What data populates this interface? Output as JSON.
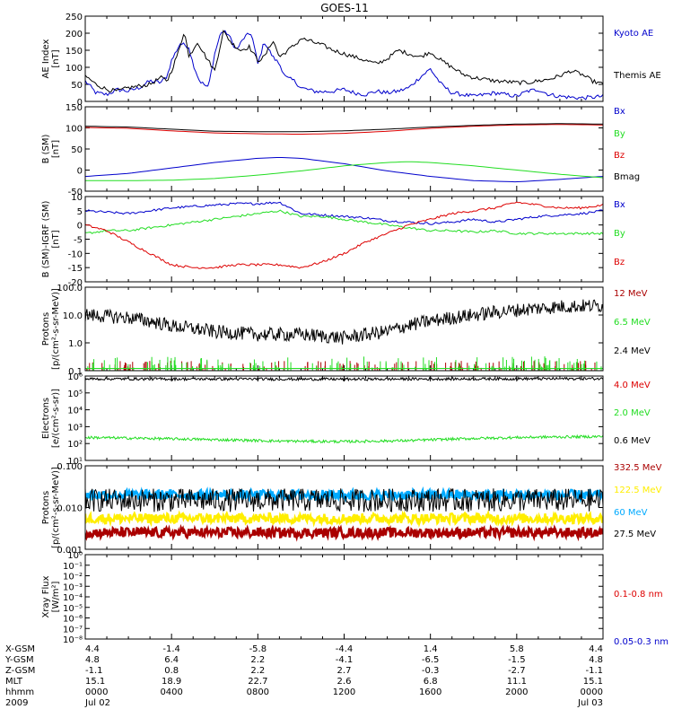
{
  "title": "GOES-11",
  "colors": {
    "black": "#000000",
    "blue": "#0000cc",
    "green": "#22dd22",
    "red": "#dd0000",
    "darkred": "#aa0000",
    "yellow": "#ffee00",
    "cyan": "#00aaff"
  },
  "chart_data": [
    {
      "id": "ae",
      "type": "line",
      "ylabel": [
        "AE Index",
        "[nT]"
      ],
      "ylim": [
        0,
        250
      ],
      "yticks": [
        "0",
        "50",
        "100",
        "150",
        "200",
        "250"
      ],
      "series": [
        {
          "name": "Kyoto AE",
          "color": "#0000cc",
          "x": [
            0,
            0.5,
            1,
            1.5,
            2,
            2.5,
            3,
            3.5,
            3.8,
            4,
            4.4,
            4.8,
            5,
            5.3,
            5.7,
            6,
            6.3,
            6.6,
            7,
            7.4,
            7.7,
            8,
            8.3,
            8.7,
            9,
            9.3,
            9.7,
            10,
            10.3,
            10.6,
            11,
            11.5,
            12,
            12.5,
            13,
            13.5,
            14,
            14.5,
            15,
            15.5,
            16,
            16.5,
            17,
            17.5,
            18,
            18.5,
            19,
            19.5,
            20,
            20.5,
            21,
            21.5,
            22,
            22.5,
            23,
            23.5,
            24
          ],
          "values": [
            60,
            25,
            20,
            35,
            30,
            40,
            60,
            55,
            75,
            120,
            170,
            160,
            110,
            60,
            40,
            140,
            205,
            200,
            150,
            190,
            200,
            110,
            175,
            130,
            110,
            70,
            60,
            40,
            35,
            30,
            28,
            30,
            35,
            25,
            20,
            30,
            25,
            30,
            40,
            70,
            95,
            50,
            25,
            20,
            15,
            20,
            25,
            20,
            15,
            30,
            35,
            20,
            15,
            12,
            10,
            12,
            15
          ]
        },
        {
          "name": "Themis AE",
          "color": "#000000",
          "x": [
            0,
            0.5,
            1,
            1.5,
            2,
            2.5,
            3,
            3.5,
            3.8,
            4,
            4.4,
            4.6,
            4.8,
            5.2,
            5.6,
            6,
            6.4,
            6.8,
            7.2,
            7.6,
            8,
            8.3,
            8.7,
            9,
            9.4,
            9.8,
            10,
            10.5,
            11,
            11.5,
            12,
            12.5,
            13,
            13.5,
            14,
            14.5,
            15,
            15.5,
            16,
            16.5,
            17,
            17.5,
            18,
            18.5,
            19,
            19.5,
            20,
            20.5,
            21,
            21.5,
            22,
            22.5,
            23,
            23.5,
            24
          ],
          "values": [
            75,
            50,
            35,
            30,
            40,
            45,
            50,
            70,
            60,
            90,
            160,
            210,
            130,
            175,
            130,
            90,
            205,
            170,
            150,
            160,
            120,
            130,
            180,
            130,
            150,
            170,
            185,
            175,
            165,
            150,
            140,
            130,
            120,
            110,
            125,
            150,
            140,
            130,
            145,
            120,
            100,
            80,
            70,
            65,
            60,
            58,
            55,
            55,
            60,
            65,
            75,
            90,
            80,
            60,
            50
          ]
        }
      ]
    },
    {
      "id": "b",
      "type": "line",
      "ylabel": [
        "B (SM)",
        "[nT]"
      ],
      "ylim": [
        -50,
        150
      ],
      "yticks": [
        "-50",
        "0",
        "50",
        "100",
        "150"
      ],
      "series": [
        {
          "name": "Bx",
          "color": "#0000cc",
          "x": [
            0,
            2,
            4,
            6,
            8,
            9,
            10,
            12,
            14,
            16,
            18,
            20,
            22,
            24
          ],
          "values": [
            -15,
            -8,
            5,
            18,
            28,
            30,
            28,
            15,
            -2,
            -15,
            -25,
            -28,
            -22,
            -15
          ]
        },
        {
          "name": "By",
          "color": "#22dd22",
          "x": [
            0,
            2,
            4,
            6,
            8,
            10,
            12,
            14,
            15,
            16,
            18,
            20,
            22,
            24
          ],
          "values": [
            -25,
            -25,
            -24,
            -20,
            -12,
            -2,
            10,
            18,
            20,
            18,
            10,
            0,
            -10,
            -18
          ]
        },
        {
          "name": "Bz",
          "color": "#dd0000",
          "x": [
            0,
            2,
            4,
            6,
            8,
            10,
            12,
            14,
            16,
            18,
            20,
            22,
            24
          ],
          "values": [
            101,
            99,
            93,
            88,
            86,
            85,
            87,
            92,
            99,
            104,
            107,
            108,
            107
          ]
        },
        {
          "name": "Bmag",
          "color": "#000000",
          "x": [
            0,
            2,
            4,
            6,
            8,
            10,
            12,
            14,
            16,
            18,
            20,
            22,
            24
          ],
          "values": [
            104,
            102,
            97,
            92,
            91,
            91,
            93,
            97,
            102,
            106,
            109,
            110,
            109
          ]
        }
      ]
    },
    {
      "id": "b-igrf",
      "type": "line",
      "ylabel": [
        "B (SM)-IGRF (SM)",
        "[nT]"
      ],
      "ylim": [
        -20,
        10
      ],
      "yticks": [
        "-20",
        "-15",
        "-10",
        "-5",
        "0",
        "5",
        "10"
      ],
      "series": [
        {
          "name": "Bx",
          "color": "#0000cc",
          "x": [
            0,
            1,
            2,
            3,
            4,
            5,
            6,
            7,
            8,
            9,
            9.5,
            10,
            11,
            12,
            13,
            14,
            15,
            16,
            17,
            18,
            19,
            20,
            21,
            22,
            23,
            24
          ],
          "values": [
            5,
            4.5,
            4,
            5,
            6,
            6.5,
            7,
            7.5,
            7.5,
            8,
            6,
            4,
            3.5,
            3,
            2.5,
            1.5,
            1,
            0.5,
            1,
            2,
            1,
            2,
            3,
            3.5,
            4,
            5
          ]
        },
        {
          "name": "By",
          "color": "#22dd22",
          "x": [
            0,
            1,
            2,
            3,
            4,
            5,
            6,
            7,
            8,
            9,
            10,
            11,
            12,
            13,
            14,
            15,
            16,
            17,
            18,
            19,
            20,
            21,
            22,
            23,
            24
          ],
          "values": [
            -3,
            -2,
            -2,
            -1,
            0,
            1,
            2,
            3,
            4,
            5,
            3,
            3,
            2,
            1,
            0,
            -1,
            -2,
            -2,
            -2.5,
            -2,
            -3,
            -3,
            -3,
            -3,
            -3
          ]
        },
        {
          "name": "Bz",
          "color": "#dd0000",
          "x": [
            0,
            1,
            2,
            3,
            4,
            5,
            6,
            7,
            8,
            9,
            10,
            11,
            12,
            13,
            14,
            15,
            16,
            17,
            18,
            19,
            20,
            21,
            22,
            23,
            24
          ],
          "values": [
            0,
            -2,
            -6,
            -10,
            -14,
            -15,
            -15,
            -14,
            -14,
            -14,
            -15,
            -13,
            -10,
            -6,
            -3,
            0,
            2,
            4,
            5,
            6,
            8,
            7,
            6,
            6,
            7
          ]
        }
      ]
    },
    {
      "id": "protons-low",
      "type": "line",
      "scale": "log",
      "ylabel": [
        "Protons",
        "[p/(cm²-s-sr-MeV)]"
      ],
      "ylim": [
        0.1,
        100
      ],
      "yticks": [
        "0.1",
        "1.0",
        "10.0",
        "100.0"
      ],
      "series": [
        {
          "name": "12 MeV",
          "color": "#aa0000",
          "x": [
            0,
            24
          ],
          "values": [
            0.1,
            0.1
          ]
        },
        {
          "name": "6.5 MeV",
          "color": "#22dd22",
          "x": [
            0,
            24
          ],
          "values": [
            0.12,
            0.12
          ]
        },
        {
          "name": "2.4 MeV",
          "color": "#000000",
          "x": [
            0,
            2,
            4,
            6,
            8,
            10,
            12,
            14,
            16,
            18,
            20,
            22,
            24
          ],
          "values": [
            10,
            8,
            4,
            2.5,
            2,
            2,
            1.5,
            2.5,
            6,
            10,
            15,
            20,
            22
          ]
        }
      ]
    },
    {
      "id": "electrons",
      "type": "line",
      "scale": "log",
      "ylabel": [
        "Electrons",
        "[e/(cm²-s-sr)]"
      ],
      "ylim": [
        10,
        1000000
      ],
      "yticks": [
        "10¹",
        "10²",
        "10³",
        "10⁴",
        "10⁵",
        "10⁶"
      ],
      "series": [
        {
          "name": "4.0 MeV",
          "color": "#dd0000",
          "x": [
            0,
            24
          ],
          "values": [
            1000000,
            1000000
          ]
        },
        {
          "name": "2.0 MeV",
          "color": "#22dd22",
          "x": [
            0,
            3,
            6,
            9,
            12,
            15,
            18,
            21,
            24
          ],
          "values": [
            230,
            200,
            170,
            140,
            130,
            150,
            200,
            240,
            260
          ]
        },
        {
          "name": "0.6 MeV",
          "color": "#000000",
          "x": [
            0,
            6,
            12,
            18,
            24
          ],
          "values": [
            680000,
            670000,
            650000,
            680000,
            700000
          ]
        }
      ]
    },
    {
      "id": "protons-high",
      "type": "line",
      "scale": "log",
      "ylabel": [
        "Protons",
        "[p/(cm²-s-sr-MeV)]"
      ],
      "ylim": [
        0.001,
        0.1
      ],
      "yticks": [
        "0.001",
        "0.010",
        "0.100"
      ],
      "series": [
        {
          "name": "332.5 MeV",
          "color": "#aa0000",
          "x": [
            0,
            24
          ],
          "values": [
            0.0025,
            0.0025
          ]
        },
        {
          "name": "122.5 MeV",
          "color": "#ffee00",
          "x": [
            0,
            24
          ],
          "values": [
            0.0055,
            0.0055
          ]
        },
        {
          "name": "60 MeV",
          "color": "#00aaff",
          "x": [
            0,
            24
          ],
          "values": [
            0.02,
            0.02
          ]
        },
        {
          "name": "27.5 MeV",
          "color": "#000000",
          "x": [
            0,
            24
          ],
          "values": [
            0.015,
            0.015
          ]
        }
      ]
    },
    {
      "id": "xray",
      "type": "line",
      "scale": "log",
      "ylabel": [
        "Xray Flux",
        "[W/m²]"
      ],
      "ylim": [
        1e-08,
        1
      ],
      "yticks": [
        "10⁻⁸",
        "10⁻⁷",
        "10⁻⁶",
        "10⁻⁵",
        "10⁻⁴",
        "10⁻³",
        "10⁻²",
        "10⁻¹",
        "10⁰"
      ],
      "series": [
        {
          "name": "0.1-0.8 nm",
          "color": "#dd0000",
          "x": [],
          "values": []
        },
        {
          "name": "0.05-0.3 nm",
          "color": "#0000cc",
          "x": [],
          "values": []
        }
      ]
    }
  ],
  "xaxis": {
    "rows": [
      {
        "label": "X-GSM",
        "values": [
          "4.4",
          "-1.4",
          "-5.8",
          "-4.4",
          "1.4",
          "5.8",
          "4.4"
        ]
      },
      {
        "label": "Y-GSM",
        "values": [
          "4.8",
          "6.4",
          "2.2",
          "-4.1",
          "-6.5",
          "-1.5",
          "4.8"
        ]
      },
      {
        "label": "Z-GSM",
        "values": [
          "-1.1",
          "0.8",
          "2.2",
          "2.7",
          "-0.3",
          "-2.7",
          "-1.1"
        ]
      },
      {
        "label": "MLT",
        "values": [
          "15.1",
          "18.9",
          "22.7",
          "2.6",
          "6.8",
          "11.1",
          "15.1"
        ]
      },
      {
        "label": "hhmm",
        "values": [
          "0000",
          "0400",
          "0800",
          "1200",
          "1600",
          "2000",
          "0000"
        ]
      },
      {
        "label": "2009",
        "values": [
          "Jul 02",
          "",
          "",
          "",
          "",
          "",
          "Jul 03"
        ]
      }
    ]
  }
}
